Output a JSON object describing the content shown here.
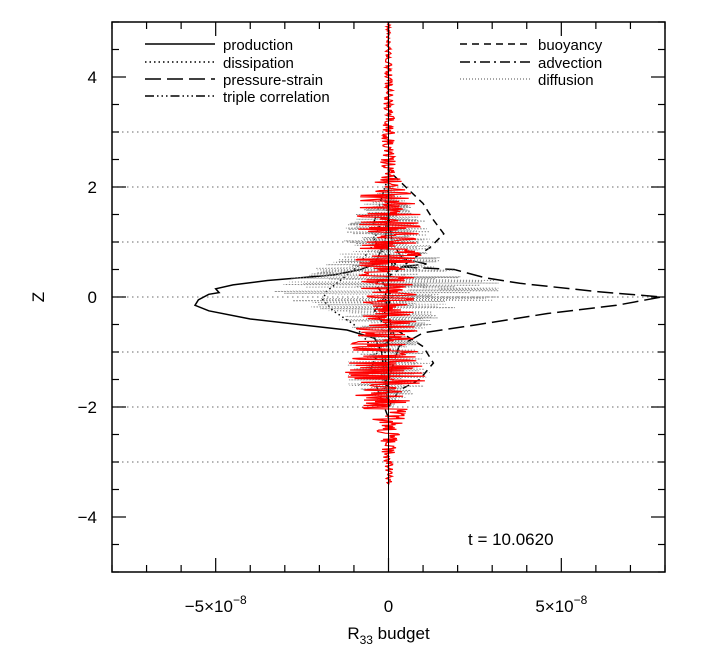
{
  "chart_data": {
    "type": "line",
    "xlim": [
      -8e-08,
      8e-08
    ],
    "ylim": [
      -5,
      5
    ],
    "x_ticks": [
      {
        "value": -5e-08,
        "label_base": "−5×10",
        "label_exp": "−8"
      },
      {
        "value": 0,
        "label_base": "0",
        "label_exp": ""
      },
      {
        "value": 5e-08,
        "label_base": "5×10",
        "label_exp": "−8"
      }
    ],
    "y_ticks": [
      {
        "value": -4,
        "label": "−4"
      },
      {
        "value": -2,
        "label": "−2"
      },
      {
        "value": 0,
        "label": "0"
      },
      {
        "value": 2,
        "label": "2"
      },
      {
        "value": 4,
        "label": "4"
      }
    ],
    "x_minor_step": 1e-08,
    "y_minor_step": 0.5,
    "xlabel_base": "R",
    "xlabel_sub": "33",
    "xlabel_rest": " budget",
    "ylabel": "Z",
    "annotation": "t = 10.0620",
    "reference_lines_y": [
      -3,
      -2,
      -1,
      0,
      1,
      2,
      3
    ],
    "legend": [
      {
        "name": "production",
        "style": "solid",
        "color": "#000000"
      },
      {
        "name": "dissipation",
        "style": "dotted",
        "color": "#000000"
      },
      {
        "name": "pressure-strain",
        "style": "longdash",
        "color": "#000000"
      },
      {
        "name": "triple correlation",
        "style": "dashdotdotdot",
        "color": "#000000"
      },
      {
        "name": "buoyancy",
        "style": "dashed",
        "color": "#000000"
      },
      {
        "name": "advection",
        "style": "dashdot",
        "color": "#000000"
      },
      {
        "name": "diffusion",
        "style": "finedotted",
        "color": "#888888"
      }
    ],
    "series": [
      {
        "name": "production",
        "style": "solid",
        "color": "#000000",
        "points": [
          [
            0,
            -2.0
          ],
          [
            -1e-09,
            -1.5
          ],
          [
            -2e-09,
            -1.0
          ],
          [
            -4e-09,
            -0.75
          ],
          [
            -1.2e-08,
            -0.6
          ],
          [
            -2.6e-08,
            -0.5
          ],
          [
            -4e-08,
            -0.4
          ],
          [
            -5.2e-08,
            -0.25
          ],
          [
            -5.6e-08,
            -0.15
          ],
          [
            -5.5e-08,
            -0.05
          ],
          [
            -5.2e-08,
            0.05
          ],
          [
            -4.9e-08,
            0.08
          ],
          [
            -5e-08,
            0.15
          ],
          [
            -4.5e-08,
            0.22
          ],
          [
            -3.5e-08,
            0.3
          ],
          [
            -1.6e-08,
            0.4
          ],
          [
            -8e-09,
            0.5
          ],
          [
            -4e-09,
            0.6
          ],
          [
            -1e-09,
            1.0
          ],
          [
            0,
            1.5
          ],
          [
            0,
            2.5
          ]
        ]
      },
      {
        "name": "dissipation",
        "style": "dotted",
        "color": "#000000",
        "points": [
          [
            0,
            -2.0
          ],
          [
            -2e-09,
            -1.4
          ],
          [
            -5e-09,
            -0.9
          ],
          [
            -1e-08,
            -0.5
          ],
          [
            -1.6e-08,
            -0.25
          ],
          [
            -1.9e-08,
            -0.05
          ],
          [
            -1.8e-08,
            0.1
          ],
          [
            -1.4e-08,
            0.3
          ],
          [
            -9e-09,
            0.55
          ],
          [
            -5e-09,
            0.9
          ],
          [
            -2e-09,
            1.4
          ],
          [
            0,
            2.0
          ]
        ]
      },
      {
        "name": "pressure-strain",
        "style": "longdash",
        "color": "#000000",
        "points": [
          [
            0,
            -1.5
          ],
          [
            3e-09,
            -0.9
          ],
          [
            1e-08,
            -0.65
          ],
          [
            2.6e-08,
            -0.5
          ],
          [
            4.6e-08,
            -0.3
          ],
          [
            6.6e-08,
            -0.15
          ],
          [
            7.9e-08,
            0.0
          ],
          [
            6e-08,
            0.1
          ],
          [
            3.8e-08,
            0.25
          ],
          [
            2.8e-08,
            0.35
          ],
          [
            1.9e-08,
            0.5
          ],
          [
            3e-09,
            0.55
          ],
          [
            1.1e-08,
            0.6
          ],
          [
            4e-09,
            0.7
          ],
          [
            1e-09,
            1.0
          ],
          [
            0,
            1.5
          ]
        ]
      },
      {
        "name": "triple correlation",
        "style": "dashdotdotdot",
        "color": "#000000",
        "points": [
          [
            0,
            -2.2
          ],
          [
            -3e-09,
            -1.7
          ],
          [
            -5e-09,
            -1.3
          ],
          [
            -3e-09,
            -0.95
          ],
          [
            2e-09,
            -0.7
          ],
          [
            -2e-09,
            -0.4
          ],
          [
            1e-09,
            0.0
          ],
          [
            -2e-09,
            0.3
          ],
          [
            2e-09,
            0.6
          ],
          [
            -3e-09,
            0.9
          ],
          [
            -5e-09,
            1.2
          ],
          [
            -3e-09,
            1.6
          ],
          [
            0,
            2.2
          ]
        ]
      },
      {
        "name": "buoyancy",
        "style": "dashed",
        "color": "#000000",
        "points": [
          [
            0,
            -2.0
          ],
          [
            3e-09,
            -1.7
          ],
          [
            9e-09,
            -1.5
          ],
          [
            1.3e-08,
            -1.2
          ],
          [
            1e-08,
            -0.9
          ],
          [
            5e-09,
            -0.7
          ],
          [
            -2e-09,
            -0.45
          ],
          [
            -4e-09,
            -0.25
          ],
          [
            -1e-09,
            0.0
          ],
          [
            -4e-09,
            0.25
          ],
          [
            2e-09,
            0.45
          ],
          [
            6e-09,
            0.65
          ],
          [
            1.2e-08,
            0.9
          ],
          [
            1.6e-08,
            1.15
          ],
          [
            1.3e-08,
            1.4
          ],
          [
            1e-08,
            1.7
          ],
          [
            5e-09,
            2.0
          ],
          [
            0,
            2.3
          ]
        ]
      },
      {
        "name": "advection",
        "style": "dashdot",
        "color": "#000000",
        "points": [
          [
            0,
            -2.0
          ],
          [
            -1e-09,
            -1.0
          ],
          [
            1e-09,
            -0.6
          ],
          [
            -1e-09,
            0.0
          ],
          [
            1e-09,
            0.6
          ],
          [
            -1e-09,
            1.0
          ],
          [
            0,
            2.0
          ]
        ]
      }
    ],
    "noise_series": [
      {
        "name": "diffusion",
        "style": "finedotted",
        "color": "#888888",
        "envelope": [
          [
            -2.0,
            1e-09
          ],
          [
            -1.6,
            1.2e-08
          ],
          [
            -1.2,
            1.2e-08
          ],
          [
            -0.8,
            9e-09
          ],
          [
            -0.6,
            1e-08
          ],
          [
            -0.3,
            1.8e-08
          ],
          [
            0.0,
            3.4e-08
          ],
          [
            0.3,
            3.2e-08
          ],
          [
            0.6,
            1.8e-08
          ],
          [
            0.9,
            1.3e-08
          ],
          [
            1.2,
            1.3e-08
          ],
          [
            1.6,
            9e-09
          ],
          [
            2.0,
            1e-09
          ]
        ]
      },
      {
        "name": "",
        "style": "solid",
        "color": "#ff0000",
        "envelope": [
          [
            -3.4,
            1e-09
          ],
          [
            -3.0,
            1.5e-09
          ],
          [
            -2.6,
            3e-09
          ],
          [
            -2.2,
            5e-09
          ],
          [
            -1.8,
            1e-08
          ],
          [
            -1.4,
            1.3e-08
          ],
          [
            -1.0,
            1.1e-08
          ],
          [
            -0.6,
            1e-08
          ],
          [
            -0.2,
            7e-09
          ],
          [
            0.0,
            9e-09
          ],
          [
            0.2,
            8e-09
          ],
          [
            0.6,
            1e-08
          ],
          [
            1.0,
            9e-09
          ],
          [
            1.4,
            1e-08
          ],
          [
            1.8,
            9e-09
          ],
          [
            2.2,
            3e-09
          ],
          [
            2.6,
            2e-09
          ],
          [
            3.0,
            2e-09
          ],
          [
            3.6,
            1.5e-09
          ],
          [
            4.2,
            1e-09
          ],
          [
            5.0,
            5e-10
          ]
        ]
      }
    ]
  }
}
